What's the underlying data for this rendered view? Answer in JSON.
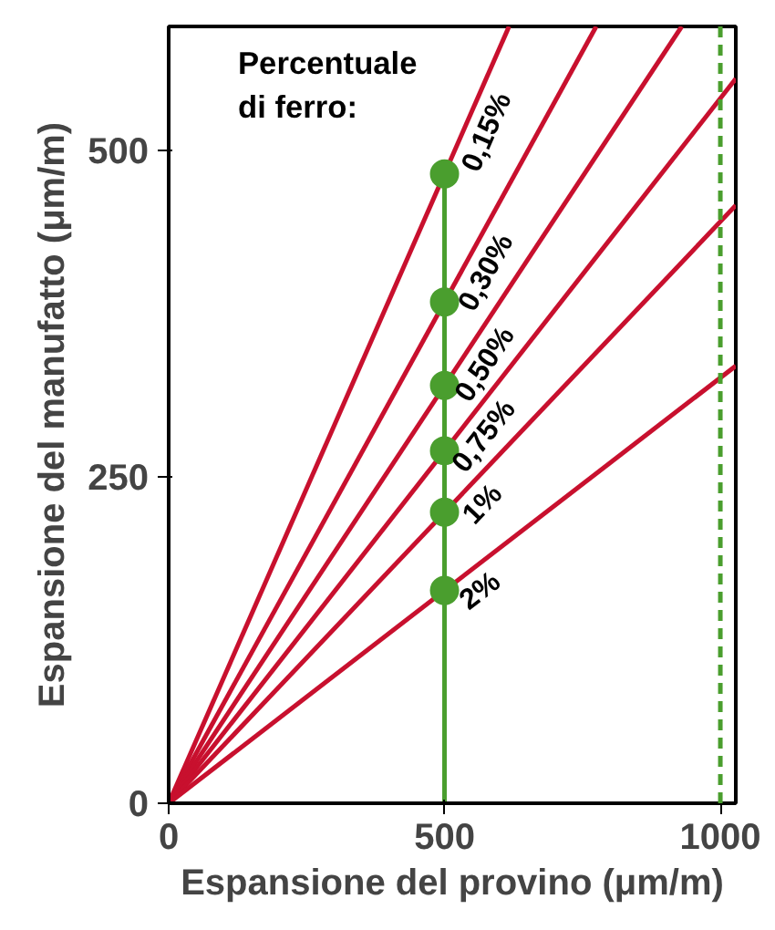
{
  "chart_data": {
    "type": "line",
    "xlabel": "Espansione del provino (μm/m)",
    "ylabel": "Espansione del manufatto (μm/m)",
    "annotations": [
      "Percentuale\ndi ferro:"
    ],
    "xlim": [
      0,
      1028
    ],
    "ylim": [
      0,
      595
    ],
    "xticks": [
      0,
      500,
      1000
    ],
    "yticks": [
      0,
      250,
      500
    ],
    "grid": false,
    "series": [
      {
        "name": "0,15%",
        "color": "#c8102e",
        "x": [
          0,
          617
        ],
        "values": [
          0,
          595
        ]
      },
      {
        "name": "0,30%",
        "color": "#c8102e",
        "x": [
          0,
          775
        ],
        "values": [
          0,
          595
        ]
      },
      {
        "name": "0,50%",
        "color": "#c8102e",
        "x": [
          0,
          930
        ],
        "values": [
          0,
          595
        ]
      },
      {
        "name": "0,75%",
        "color": "#c8102e",
        "x": [
          0,
          1028
        ],
        "values": [
          0,
          555
        ]
      },
      {
        "name": "1%",
        "color": "#c8102e",
        "x": [
          0,
          1028
        ],
        "values": [
          0,
          458
        ]
      },
      {
        "name": "2%",
        "color": "#c8102e",
        "x": [
          0,
          1028
        ],
        "values": [
          0,
          335
        ]
      },
      {
        "type": "line",
        "color": "#4a9e2e",
        "x": [
          500,
          500
        ],
        "values": [
          0,
          482
        ]
      },
      {
        "type": "scatter",
        "marker": "circle",
        "color": "#4a9e2e",
        "x": [
          500,
          500,
          500,
          500,
          500,
          500
        ],
        "values": [
          482,
          384,
          320,
          270,
          223,
          163
        ]
      }
    ],
    "ref_lines": [
      {
        "axis": "x",
        "value": 1000,
        "color": "#4a9e2e",
        "line_style": "dashed"
      }
    ]
  }
}
